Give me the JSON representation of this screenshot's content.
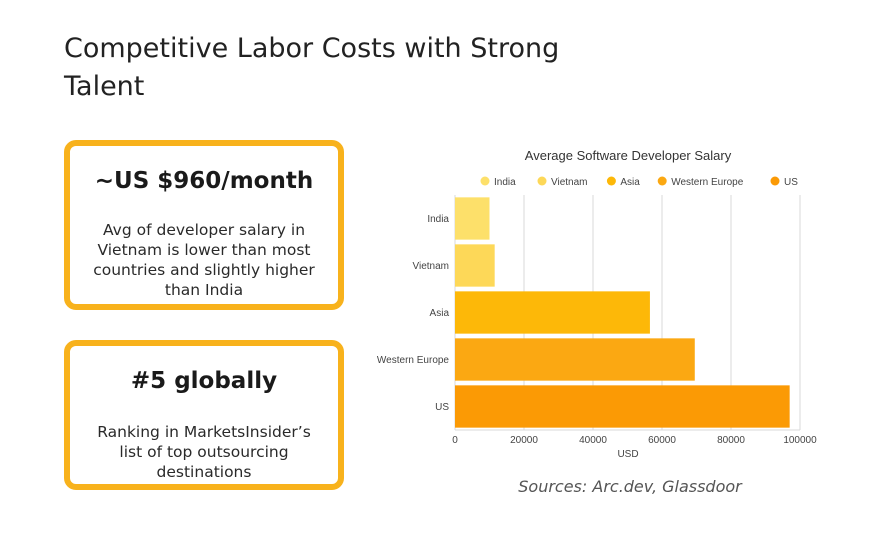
{
  "page": {
    "title": "Competitive Labor Costs with Strong Talent",
    "sources": "Sources: Arc.dev, Glassdoor"
  },
  "cards": [
    {
      "headline": "~US $960/month",
      "body": "Avg of developer salary in Vietnam is lower than most countries and slightly higher than India"
    },
    {
      "headline": "#5 globally",
      "body": "Ranking in MarketsInsider’s list of top outsourcing destinations"
    }
  ],
  "chart_data": {
    "type": "bar",
    "orientation": "horizontal",
    "title": "Average Software Developer Salary",
    "xlabel": "USD",
    "ylabel": "",
    "xlim": [
      0,
      100000
    ],
    "xticks": [
      0,
      20000,
      40000,
      60000,
      80000,
      100000
    ],
    "grid": true,
    "legend": "top",
    "categories": [
      "India",
      "Vietnam",
      "Asia",
      "Western Europe",
      "US"
    ],
    "values": [
      10000,
      11500,
      56500,
      69500,
      97000
    ],
    "colors": [
      "#fde06a",
      "#fdd858",
      "#fdb808",
      "#fba812",
      "#fb9a05"
    ]
  }
}
